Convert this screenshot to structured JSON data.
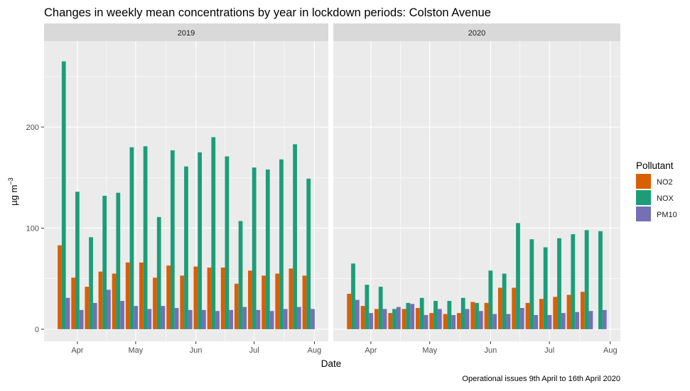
{
  "chart_data": {
    "type": "bar",
    "title": "Changes in weekly mean concentrations by year in lockdown periods: Colston Avenue",
    "xlabel": "Date",
    "ylabel_base": "µg m",
    "ylabel_exp": "−3",
    "caption": "Operational issues 9th April to 16th April 2020",
    "ylim": [
      -12,
      285
    ],
    "y_ticks": [
      0,
      100,
      200
    ],
    "x_ticks": [
      "Apr",
      "May",
      "Jun",
      "Jul",
      "Aug"
    ],
    "legend_title": "Pollutant",
    "legend_position": "right",
    "grid": true,
    "colors": {
      "NO2": "#d95f02",
      "NOX": "#1b9e77",
      "PM10": "#7570b3",
      "panel_bg": "#ebebeb",
      "strip_bg": "#d9d9d9",
      "grid": "#ffffff"
    },
    "series_names": [
      "NO2",
      "NOX",
      "PM10"
    ],
    "panels": [
      {
        "strip": "2019",
        "x": [
          "2019-03-25",
          "2019-04-01",
          "2019-04-08",
          "2019-04-15",
          "2019-04-22",
          "2019-04-29",
          "2019-05-06",
          "2019-05-13",
          "2019-05-20",
          "2019-05-27",
          "2019-06-03",
          "2019-06-10",
          "2019-06-17",
          "2019-06-24",
          "2019-07-01",
          "2019-07-08",
          "2019-07-15",
          "2019-07-22",
          "2019-07-29"
        ],
        "series": [
          {
            "name": "NO2",
            "values": [
              83,
              51,
              42,
              57,
              55,
              66,
              66,
              51,
              63,
              53,
              62,
              61,
              61,
              45,
              58,
              53,
              55,
              60,
              53
            ]
          },
          {
            "name": "NOX",
            "values": [
              265,
              136,
              91,
              132,
              135,
              180,
              181,
              111,
              177,
              161,
              175,
              190,
              171,
              107,
              160,
              158,
              168,
              183,
              149
            ]
          },
          {
            "name": "PM10",
            "values": [
              31,
              19,
              26,
              39,
              28,
              23,
              20,
              23,
              21,
              19,
              19,
              18,
              19,
              22,
              19,
              18,
              20,
              22,
              20
            ]
          }
        ]
      },
      {
        "strip": "2020",
        "x": [
          "2020-03-23",
          "2020-03-30",
          "2020-04-06",
          "2020-04-13",
          "2020-04-20",
          "2020-04-27",
          "2020-05-04",
          "2020-05-11",
          "2020-05-18",
          "2020-05-25",
          "2020-06-01",
          "2020-06-08",
          "2020-06-15",
          "2020-06-22",
          "2020-06-29",
          "2020-07-06",
          "2020-07-13",
          "2020-07-20",
          "2020-07-27"
        ],
        "series": [
          {
            "name": "NO2",
            "values": [
              35,
              23,
              20,
              16,
              20,
              21,
              16,
              15,
              16,
              27,
              26,
              41,
              41,
              26,
              30,
              32,
              34,
              37,
              0
            ]
          },
          {
            "name": "NOX",
            "values": [
              65,
              44,
              42,
              20,
              26,
              31,
              28,
              28,
              31,
              26,
              58,
              55,
              105,
              89,
              81,
              90,
              94,
              98,
              97
            ]
          },
          {
            "name": "PM10",
            "values": [
              29,
              16,
              20,
              22,
              25,
              14,
              20,
              14,
              20,
              18,
              15,
              15,
              21,
              14,
              14,
              16,
              17,
              18,
              19
            ]
          }
        ]
      }
    ]
  }
}
